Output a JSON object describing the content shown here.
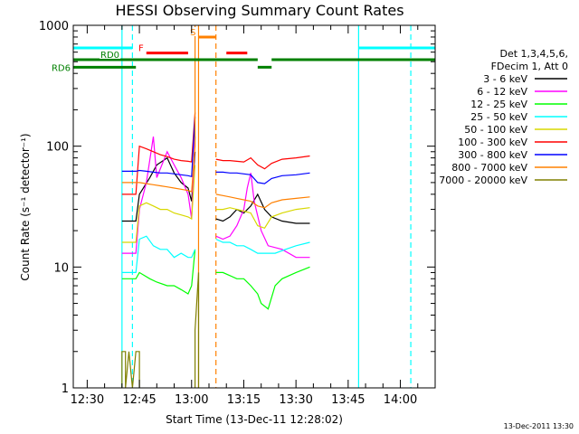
{
  "chart_data": {
    "type": "line",
    "title": "HESSI Observing Summary Count Rates",
    "xlabel": "Start Time (13-Dec-11 12:28:02)",
    "ylabel": "Count Rate (s⁻¹ detector⁻¹)",
    "y_scale": "log",
    "ylim": [
      1,
      1000
    ],
    "y_ticks": [
      1,
      10,
      100,
      1000
    ],
    "y_tick_labels": [
      "1",
      "10",
      "100",
      "1000"
    ],
    "xlim": [
      "12:26",
      "14:10"
    ],
    "x_ticks": [
      "12:30",
      "12:45",
      "13:00",
      "13:15",
      "13:30",
      "13:45",
      "14:00"
    ],
    "legend": {
      "header": [
        "Det 1,3,4,5,6,",
        "FDecim 1, Att 0"
      ],
      "entries": [
        {
          "label": "3 - 6 keV",
          "color": "#000000"
        },
        {
          "label": "6 - 12 keV",
          "color": "#ff00ff"
        },
        {
          "label": "12 - 25 keV",
          "color": "#00ff00"
        },
        {
          "label": "25 - 50 keV",
          "color": "#00ffff"
        },
        {
          "label": "50 - 100 keV",
          "color": "#d8d800"
        },
        {
          "label": "100 - 300 keV",
          "color": "#ff0000"
        },
        {
          "label": "300 - 800 keV",
          "color": "#0000ff"
        },
        {
          "label": "800 - 7000 keV",
          "color": "#ff8000"
        },
        {
          "label": "7000 - 20000 keV",
          "color": "#808000"
        }
      ]
    },
    "series": [
      {
        "name": "3 - 6 keV",
        "color": "#000000",
        "segments": [
          [
            [
              "12:40",
              24
            ],
            [
              "12:44",
              24
            ],
            [
              "12:45",
              40
            ],
            [
              "12:48",
              55
            ],
            [
              "12:50",
              70
            ],
            [
              "12:53",
              80
            ],
            [
              "12:55",
              60
            ],
            [
              "12:57",
              50
            ],
            [
              "12:59",
              45
            ],
            [
              "13:00",
              35
            ],
            [
              "13:01",
              90
            ]
          ],
          [
            [
              "13:07",
              25
            ],
            [
              "13:09",
              24
            ],
            [
              "13:11",
              26
            ],
            [
              "13:13",
              30
            ],
            [
              "13:15",
              28
            ],
            [
              "13:17",
              32
            ],
            [
              "13:19",
              40
            ],
            [
              "13:21",
              30
            ],
            [
              "13:23",
              26
            ],
            [
              "13:26",
              24
            ],
            [
              "13:30",
              23
            ],
            [
              "13:34",
              23
            ]
          ]
        ]
      },
      {
        "name": "6 - 12 keV",
        "color": "#ff00ff",
        "segments": [
          [
            [
              "12:40",
              13
            ],
            [
              "12:44",
              13
            ],
            [
              "12:45",
              30
            ],
            [
              "12:47",
              50
            ],
            [
              "12:49",
              120
            ],
            [
              "12:50",
              55
            ],
            [
              "12:53",
              90
            ],
            [
              "12:55",
              70
            ],
            [
              "12:57",
              55
            ],
            [
              "12:59",
              40
            ],
            [
              "13:00",
              25
            ],
            [
              "13:01",
              120
            ]
          ],
          [
            [
              "13:07",
              18
            ],
            [
              "13:09",
              17
            ],
            [
              "13:11",
              18
            ],
            [
              "13:13",
              22
            ],
            [
              "13:15",
              30
            ],
            [
              "13:16",
              45
            ],
            [
              "13:17",
              60
            ],
            [
              "13:18",
              35
            ],
            [
              "13:20",
              20
            ],
            [
              "13:22",
              15
            ],
            [
              "13:26",
              14
            ],
            [
              "13:30",
              12
            ],
            [
              "13:34",
              12
            ]
          ]
        ]
      },
      {
        "name": "12 - 25 keV",
        "color": "#00ff00",
        "segments": [
          [
            [
              "12:40",
              8
            ],
            [
              "12:44",
              8
            ],
            [
              "12:45",
              9
            ],
            [
              "12:48",
              8
            ],
            [
              "12:50",
              7.5
            ],
            [
              "12:53",
              7
            ],
            [
              "12:55",
              7
            ],
            [
              "12:57",
              6.5
            ],
            [
              "12:59",
              6
            ],
            [
              "13:00",
              7
            ],
            [
              "13:01",
              14
            ]
          ],
          [
            [
              "13:07",
              9
            ],
            [
              "13:09",
              9
            ],
            [
              "13:11",
              8.5
            ],
            [
              "13:13",
              8
            ],
            [
              "13:15",
              8
            ],
            [
              "13:17",
              7
            ],
            [
              "13:19",
              6
            ],
            [
              "13:20",
              5
            ],
            [
              "13:22",
              4.5
            ],
            [
              "13:24",
              7
            ],
            [
              "13:26",
              8
            ],
            [
              "13:30",
              9
            ],
            [
              "13:34",
              10
            ]
          ]
        ]
      },
      {
        "name": "25 - 50 keV",
        "color": "#00ffff",
        "segments": [
          [
            [
              "12:40",
              9
            ],
            [
              "12:44",
              9
            ],
            [
              "12:45",
              17
            ],
            [
              "12:47",
              18
            ],
            [
              "12:49",
              15
            ],
            [
              "12:51",
              14
            ],
            [
              "12:53",
              14
            ],
            [
              "12:55",
              12
            ],
            [
              "12:57",
              13
            ],
            [
              "12:59",
              12
            ],
            [
              "13:00",
              12
            ],
            [
              "13:01",
              14
            ]
          ],
          [
            [
              "13:07",
              17
            ],
            [
              "13:09",
              16
            ],
            [
              "13:11",
              16
            ],
            [
              "13:13",
              15
            ],
            [
              "13:15",
              15
            ],
            [
              "13:17",
              14
            ],
            [
              "13:19",
              13
            ],
            [
              "13:21",
              13
            ],
            [
              "13:24",
              13
            ],
            [
              "13:27",
              14
            ],
            [
              "13:30",
              15
            ],
            [
              "13:34",
              16
            ]
          ]
        ]
      },
      {
        "name": "50 - 100 keV",
        "color": "#d8d800",
        "segments": [
          [
            [
              "12:40",
              16
            ],
            [
              "12:44",
              16
            ],
            [
              "12:45",
              32
            ],
            [
              "12:47",
              34
            ],
            [
              "12:49",
              32
            ],
            [
              "12:51",
              30
            ],
            [
              "12:53",
              30
            ],
            [
              "12:55",
              28
            ],
            [
              "12:57",
              27
            ],
            [
              "12:59",
              26
            ],
            [
              "13:00",
              25
            ],
            [
              "13:01",
              70
            ]
          ],
          [
            [
              "13:07",
              30
            ],
            [
              "13:09",
              30
            ],
            [
              "13:11",
              31
            ],
            [
              "13:13",
              30
            ],
            [
              "13:15",
              29
            ],
            [
              "13:17",
              28
            ],
            [
              "13:19",
              22
            ],
            [
              "13:21",
              21
            ],
            [
              "13:23",
              26
            ],
            [
              "13:26",
              28
            ],
            [
              "13:30",
              30
            ],
            [
              "13:34",
              31
            ]
          ]
        ]
      },
      {
        "name": "100 - 300 keV",
        "color": "#ff0000",
        "segments": [
          [
            [
              "12:40",
              40
            ],
            [
              "12:44",
              40
            ],
            [
              "12:45",
              100
            ],
            [
              "12:47",
              95
            ],
            [
              "12:49",
              90
            ],
            [
              "12:51",
              85
            ],
            [
              "12:53",
              82
            ],
            [
              "12:55",
              78
            ],
            [
              "12:57",
              76
            ],
            [
              "12:59",
              75
            ],
            [
              "13:00",
              74
            ],
            [
              "13:01",
              190
            ]
          ],
          [
            [
              "13:07",
              78
            ],
            [
              "13:09",
              76
            ],
            [
              "13:11",
              76
            ],
            [
              "13:13",
              75
            ],
            [
              "13:15",
              74
            ],
            [
              "13:17",
              80
            ],
            [
              "13:19",
              70
            ],
            [
              "13:21",
              65
            ],
            [
              "13:23",
              72
            ],
            [
              "13:26",
              78
            ],
            [
              "13:30",
              80
            ],
            [
              "13:34",
              83
            ]
          ]
        ]
      },
      {
        "name": "300 - 800 keV",
        "color": "#0000ff",
        "segments": [
          [
            [
              "12:40",
              62
            ],
            [
              "12:44",
              62
            ],
            [
              "12:45",
              63
            ],
            [
              "12:47",
              62
            ],
            [
              "12:49",
              61
            ],
            [
              "12:51",
              60
            ],
            [
              "12:53",
              60
            ],
            [
              "12:55",
              59
            ],
            [
              "12:57",
              58
            ],
            [
              "12:59",
              57
            ],
            [
              "13:00",
              56
            ],
            [
              "13:01",
              175
            ]
          ],
          [
            [
              "13:07",
              61
            ],
            [
              "13:09",
              61
            ],
            [
              "13:11",
              60
            ],
            [
              "13:13",
              60
            ],
            [
              "13:15",
              59
            ],
            [
              "13:17",
              58
            ],
            [
              "13:19",
              50
            ],
            [
              "13:21",
              49
            ],
            [
              "13:23",
              54
            ],
            [
              "13:26",
              57
            ],
            [
              "13:30",
              58
            ],
            [
              "13:34",
              60
            ]
          ]
        ]
      },
      {
        "name": "800 - 7000 keV",
        "color": "#ff8000",
        "segments": [
          [
            [
              "12:40",
              50
            ],
            [
              "12:44",
              50
            ],
            [
              "12:45",
              50
            ],
            [
              "12:47",
              49
            ],
            [
              "12:49",
              48
            ],
            [
              "12:51",
              47
            ],
            [
              "12:53",
              46
            ],
            [
              "12:55",
              45
            ],
            [
              "12:57",
              44
            ],
            [
              "12:59",
              43
            ],
            [
              "13:00",
              42
            ],
            [
              "13:01",
              100
            ],
            [
              "13:01",
              1000
            ]
          ],
          [
            [
              "13:07",
              40
            ],
            [
              "13:09",
              39
            ],
            [
              "13:11",
              38
            ],
            [
              "13:13",
              37
            ],
            [
              "13:15",
              36
            ],
            [
              "13:17",
              35
            ],
            [
              "13:19",
              32
            ],
            [
              "13:21",
              31
            ],
            [
              "13:23",
              34
            ],
            [
              "13:26",
              36
            ],
            [
              "13:30",
              37
            ],
            [
              "13:34",
              38
            ]
          ]
        ]
      },
      {
        "name": "7000 - 20000 keV",
        "color": "#808000",
        "segments": [
          [
            [
              "12:40",
              1
            ],
            [
              "12:40",
              2
            ],
            [
              "12:41",
              2
            ],
            [
              "12:41",
              1
            ],
            [
              "12:42",
              2
            ],
            [
              "12:43",
              1
            ],
            [
              "12:44",
              2
            ],
            [
              "12:45",
              2
            ],
            [
              "12:45",
              1
            ]
          ],
          [
            [
              "13:01",
              1
            ],
            [
              "13:01",
              3
            ],
            [
              "13:02",
              9
            ],
            [
              "13:02",
              1
            ]
          ]
        ]
      }
    ],
    "state_bars": [
      {
        "label": "N",
        "color": "#00ffff",
        "y": 650,
        "ranges": [
          [
            "12:26",
            "12:43"
          ],
          [
            "13:48",
            "14:10"
          ]
        ]
      },
      {
        "label": "S",
        "color": "#ff8000",
        "y": 800,
        "ranges": [
          [
            "13:02",
            "13:07"
          ]
        ]
      },
      {
        "label": "F",
        "color": "#ff0000",
        "y": 590,
        "ranges": [
          [
            "12:47",
            "12:59"
          ],
          [
            "13:10",
            "13:16"
          ]
        ]
      },
      {
        "label": "RD0",
        "color": "#008000",
        "y": 520,
        "ranges": [
          [
            "12:26",
            "13:19"
          ],
          [
            "13:23",
            "14:10"
          ]
        ]
      },
      {
        "label": "RD6",
        "color": "#008000",
        "y": 450,
        "ranges": [
          [
            "12:26",
            "12:44"
          ],
          [
            "13:19",
            "13:23"
          ]
        ]
      }
    ],
    "vlines": [
      {
        "x": "12:40",
        "color": "#00ffff",
        "style": "solid"
      },
      {
        "x": "12:43",
        "color": "#00ffff",
        "style": "dashed"
      },
      {
        "x": "13:48",
        "color": "#00ffff",
        "style": "solid"
      },
      {
        "x": "14:03",
        "color": "#00ffff",
        "style": "dashed"
      },
      {
        "x": "13:02",
        "color": "#ff8000",
        "style": "solid"
      },
      {
        "x": "13:07",
        "color": "#ff8000",
        "style": "dashed"
      }
    ],
    "timestamp": "13-Dec-2011 13:30"
  }
}
